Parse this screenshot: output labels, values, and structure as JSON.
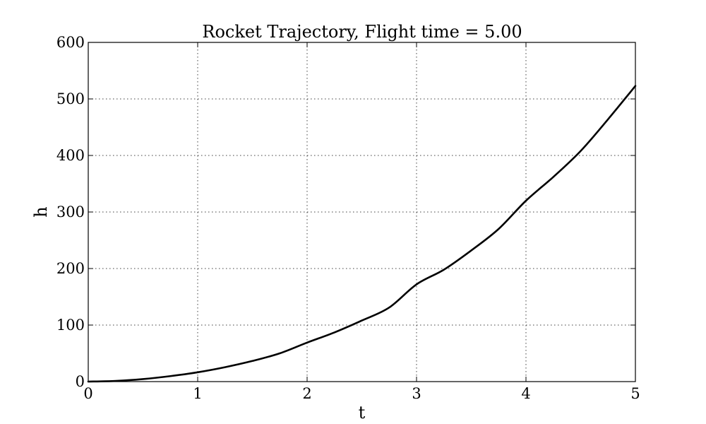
{
  "chart_data": {
    "type": "line",
    "title": "Rocket Trajectory, Flight time = 5.00",
    "xlabel": "t",
    "ylabel": "h",
    "xlim": [
      0,
      5
    ],
    "ylim": [
      0,
      600
    ],
    "x_ticks": [
      "0",
      "1",
      "2",
      "3",
      "4",
      "5"
    ],
    "y_ticks": [
      "0",
      "100",
      "200",
      "300",
      "400",
      "500",
      "600"
    ],
    "grid": true,
    "series": [
      {
        "color": "#000000",
        "x": [
          0,
          0.25,
          0.5,
          0.75,
          1,
          1.25,
          1.5,
          1.75,
          2,
          2.25,
          2.5,
          2.75,
          3,
          3.25,
          3.5,
          3.75,
          4,
          4.25,
          4.5,
          4.75,
          5
        ],
        "y": [
          0,
          1.2,
          4.5,
          9.7,
          16.5,
          25.5,
          36.5,
          50,
          69,
          87,
          108,
          131,
          172,
          198,
          232,
          270,
          320,
          362,
          408,
          464,
          523
        ]
      }
    ]
  }
}
